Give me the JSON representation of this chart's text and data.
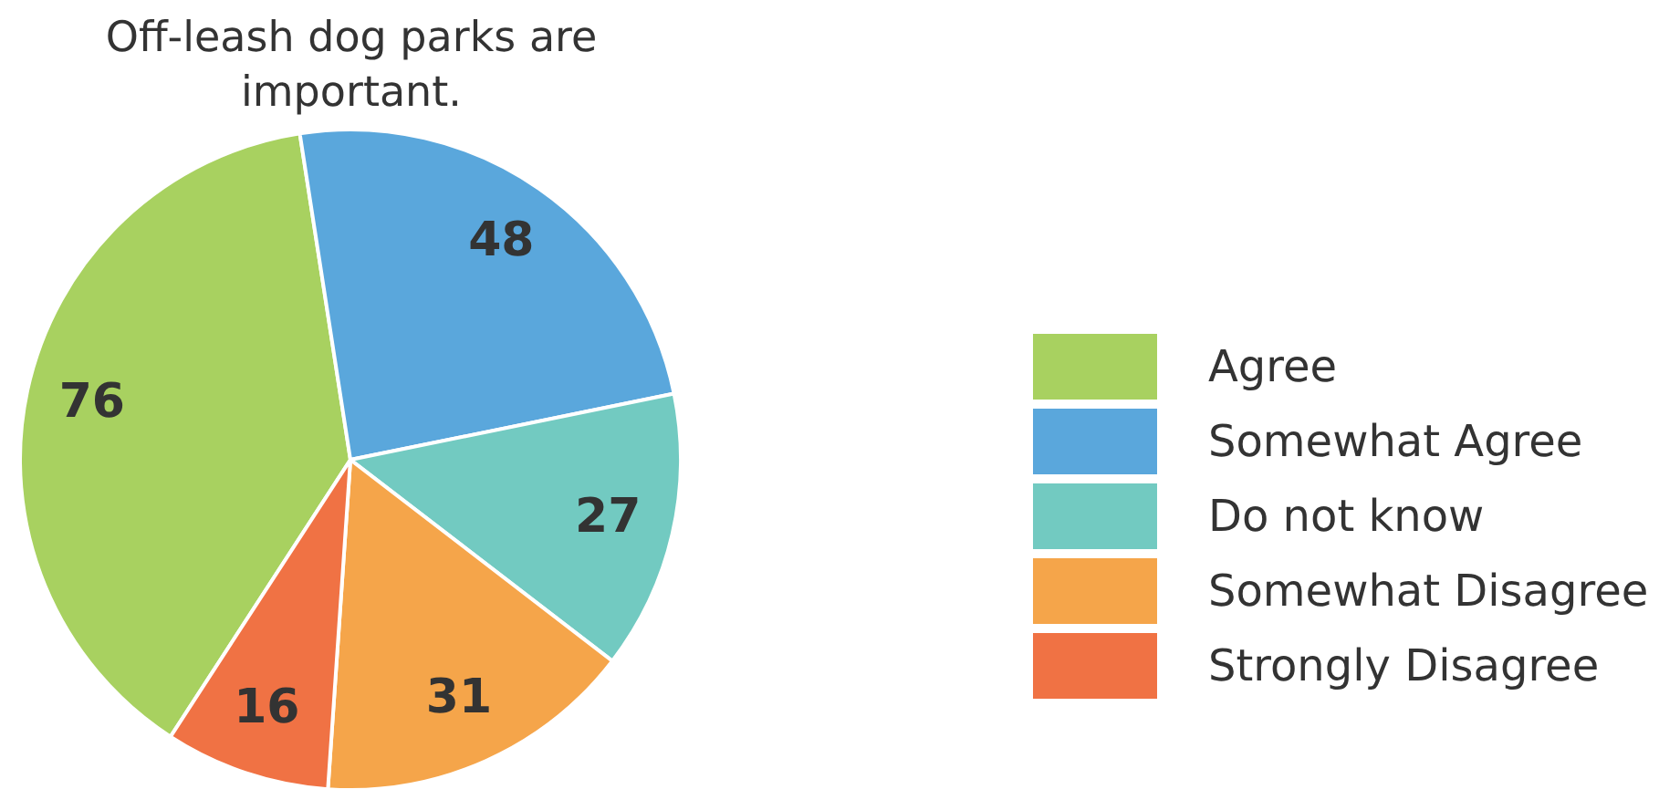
{
  "chart_data": {
    "type": "pie",
    "title": "Off-leash dog parks are important.",
    "categories": [
      "Agree",
      "Somewhat Agree",
      "Do not know",
      "Somewhat Disagree",
      "Strongly Disagree"
    ],
    "values": [
      76,
      48,
      27,
      31,
      16
    ],
    "colors": [
      "#a8d160",
      "#5aa7dc",
      "#72cac1",
      "#f5a54a",
      "#f07244"
    ],
    "data_labels": true,
    "legend": "right"
  }
}
